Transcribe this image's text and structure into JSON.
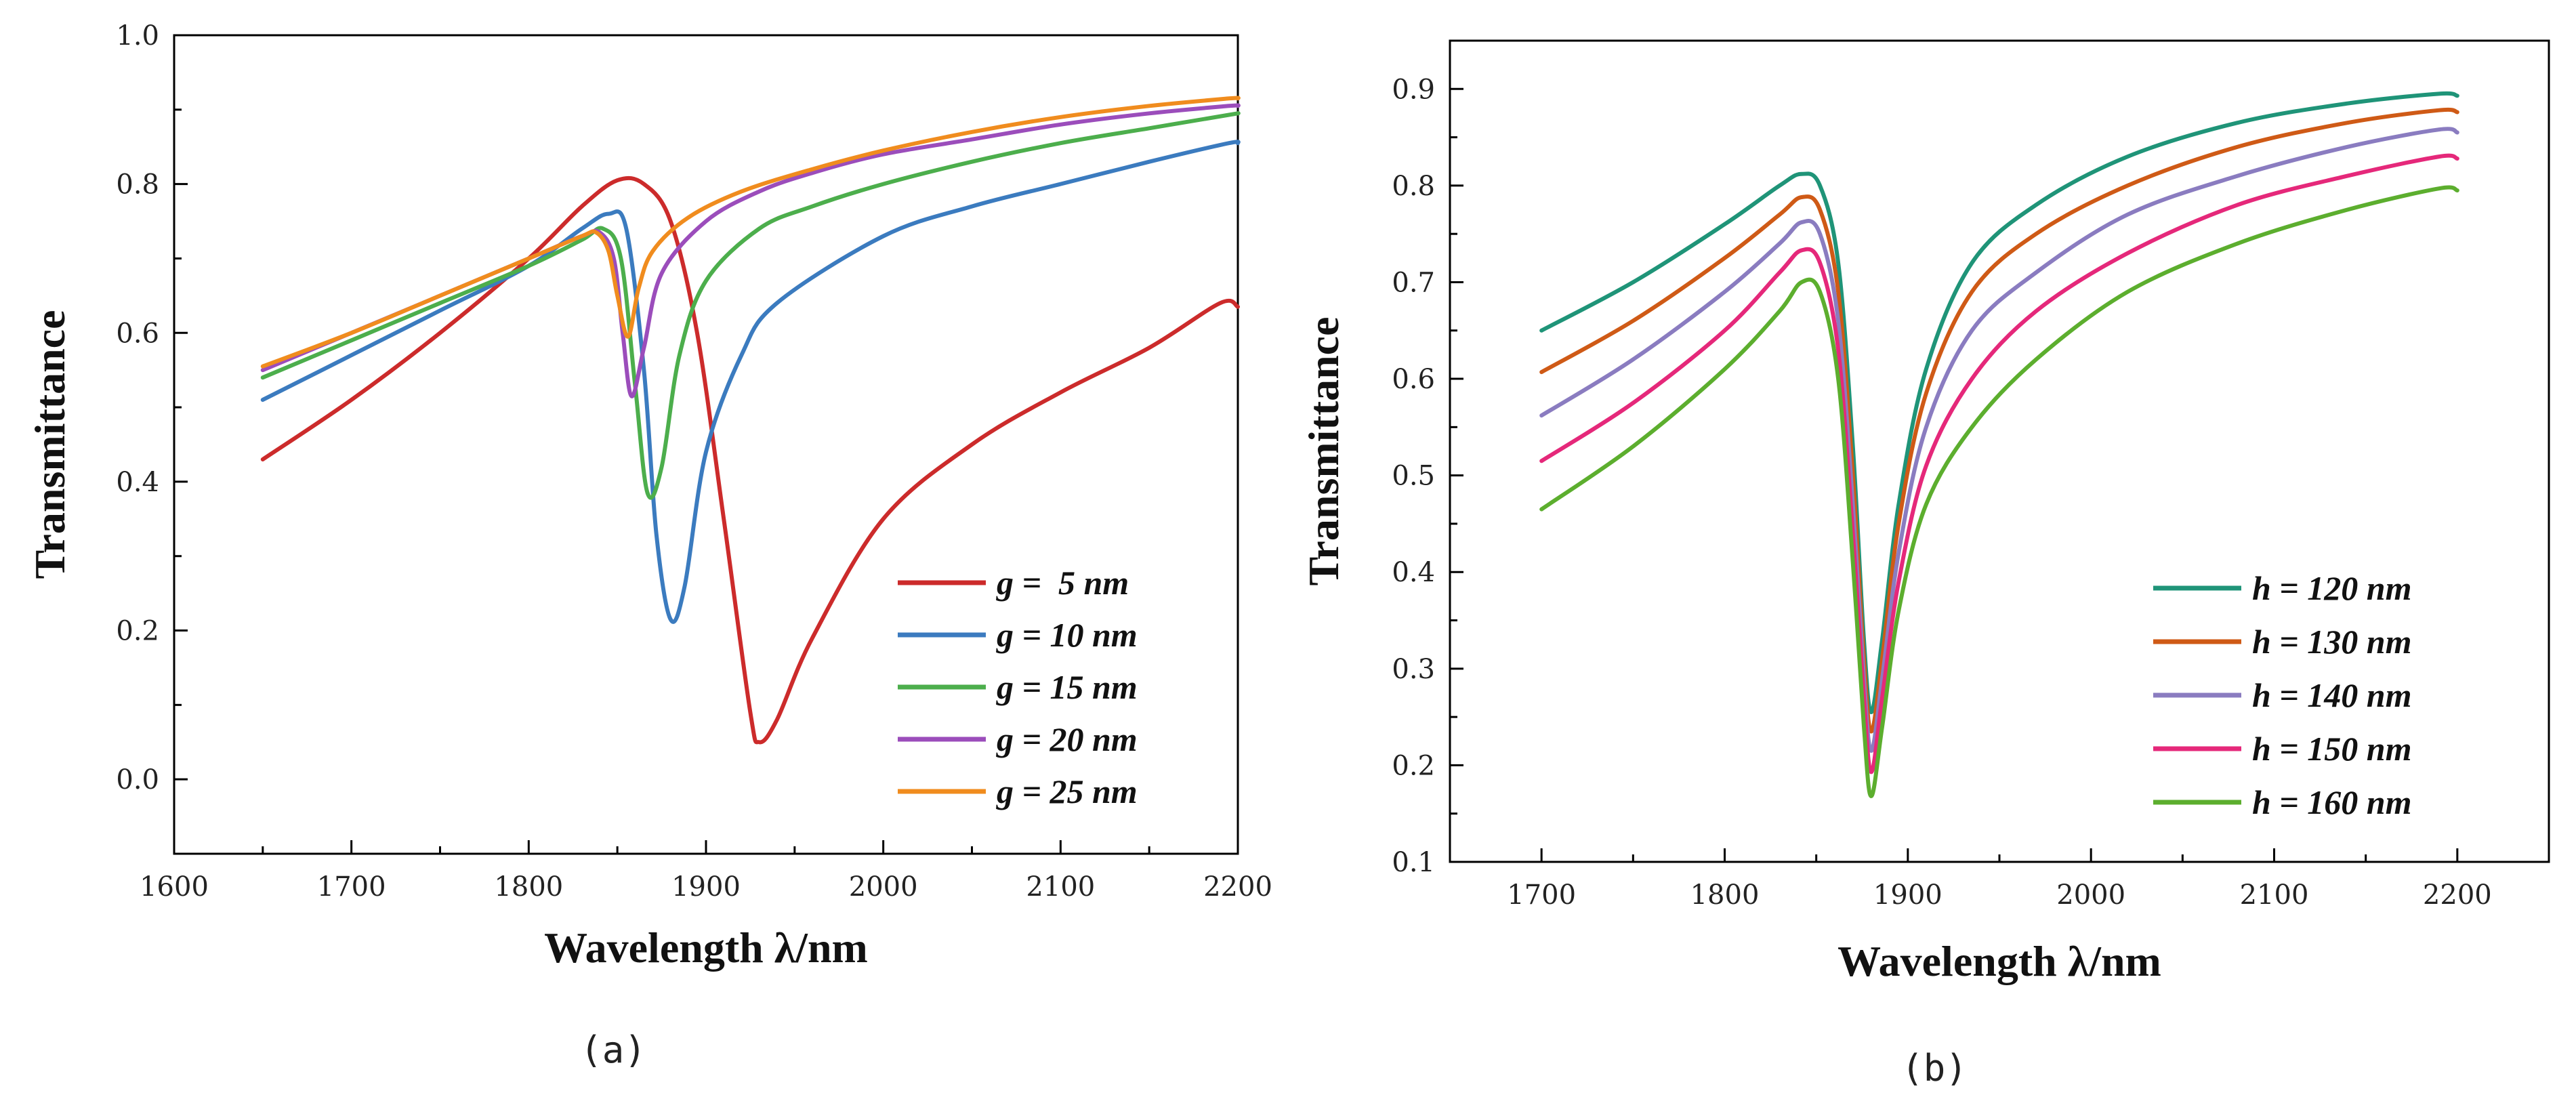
{
  "chart_data": [
    {
      "id": "a",
      "type": "line",
      "panel_label": "(a)",
      "xlabel": "Wavelength λ/nm",
      "ylabel": "Transmittance",
      "xlim": [
        1600,
        2200
      ],
      "ylim": [
        -0.1,
        1.0
      ],
      "xticks": [
        "1600",
        "1700",
        "1800",
        "1900",
        "2000",
        "2100",
        "2200"
      ],
      "xtick_values": [
        1600,
        1700,
        1800,
        1900,
        2000,
        2100,
        2200
      ],
      "yticks": [
        "0.0",
        "0.2",
        "0.4",
        "0.6",
        "0.8",
        "1.0"
      ],
      "ytick_values": [
        0.0,
        0.2,
        0.4,
        0.6,
        0.8,
        1.0
      ],
      "legend_position": "bottom-right",
      "series": [
        {
          "name": "g =  5 nm",
          "color": "#cc2b2b",
          "x": [
            1650,
            1700,
            1750,
            1800,
            1830,
            1850,
            1865,
            1880,
            1895,
            1910,
            1925,
            1930,
            1940,
            1960,
            2000,
            2050,
            2100,
            2150,
            2190,
            2200
          ],
          "y": [
            0.43,
            0.51,
            0.6,
            0.7,
            0.77,
            0.805,
            0.8,
            0.75,
            0.6,
            0.35,
            0.09,
            0.05,
            0.08,
            0.19,
            0.35,
            0.45,
            0.52,
            0.58,
            0.64,
            0.635
          ]
        },
        {
          "name": "g = 10 nm",
          "color": "#3b7bbf",
          "x": [
            1650,
            1700,
            1750,
            1800,
            1830,
            1845,
            1855,
            1865,
            1872,
            1880,
            1888,
            1900,
            1920,
            1940,
            2000,
            2050,
            2100,
            2150,
            2195,
            2200
          ],
          "y": [
            0.51,
            0.57,
            0.63,
            0.69,
            0.74,
            0.76,
            0.74,
            0.55,
            0.33,
            0.215,
            0.26,
            0.44,
            0.57,
            0.64,
            0.73,
            0.77,
            0.8,
            0.83,
            0.855,
            0.855
          ]
        },
        {
          "name": "g = 15 nm",
          "color": "#4cae4c",
          "x": [
            1650,
            1700,
            1750,
            1800,
            1830,
            1842,
            1852,
            1860,
            1867,
            1875,
            1885,
            1900,
            1930,
            1960,
            2000,
            2050,
            2100,
            2150,
            2195,
            2200
          ],
          "y": [
            0.54,
            0.59,
            0.64,
            0.69,
            0.725,
            0.74,
            0.7,
            0.53,
            0.385,
            0.42,
            0.57,
            0.67,
            0.74,
            0.77,
            0.8,
            0.83,
            0.855,
            0.875,
            0.893,
            0.895
          ]
        },
        {
          "name": "g = 20 nm",
          "color": "#9b4dbb",
          "x": [
            1650,
            1700,
            1750,
            1800,
            1830,
            1840,
            1848,
            1853,
            1858,
            1865,
            1875,
            1900,
            1930,
            1960,
            2000,
            2050,
            2100,
            2150,
            2195,
            2200
          ],
          "y": [
            0.55,
            0.6,
            0.65,
            0.7,
            0.73,
            0.735,
            0.7,
            0.6,
            0.515,
            0.58,
            0.68,
            0.75,
            0.79,
            0.815,
            0.84,
            0.86,
            0.88,
            0.895,
            0.905,
            0.905
          ]
        },
        {
          "name": "g = 25 nm",
          "color": "#f08c1e",
          "x": [
            1650,
            1700,
            1750,
            1800,
            1830,
            1838,
            1845,
            1850,
            1856,
            1862,
            1870,
            1890,
            1920,
            1960,
            2000,
            2050,
            2100,
            2150,
            2195,
            2200
          ],
          "y": [
            0.555,
            0.6,
            0.65,
            0.7,
            0.73,
            0.735,
            0.71,
            0.65,
            0.595,
            0.66,
            0.71,
            0.755,
            0.79,
            0.82,
            0.845,
            0.87,
            0.89,
            0.905,
            0.915,
            0.915
          ]
        }
      ]
    },
    {
      "id": "b",
      "type": "line",
      "panel_label": "(b)",
      "xlabel": "Wavelength λ/nm",
      "ylabel": "Transmittance",
      "xlim": [
        1650,
        2250
      ],
      "ylim": [
        0.1,
        0.95
      ],
      "xticks": [
        "1700",
        "1800",
        "1900",
        "2000",
        "2100",
        "2200"
      ],
      "xtick_values": [
        1700,
        1800,
        1900,
        2000,
        2100,
        2200
      ],
      "yticks": [
        "0.1",
        "0.2",
        "0.3",
        "0.4",
        "0.5",
        "0.6",
        "0.7",
        "0.8",
        "0.9"
      ],
      "ytick_values": [
        0.1,
        0.2,
        0.3,
        0.4,
        0.5,
        0.6,
        0.7,
        0.8,
        0.9
      ],
      "legend_position": "bottom-right",
      "series": [
        {
          "name": "h = 120 nm",
          "color": "#1f9478",
          "x": [
            1700,
            1750,
            1800,
            1830,
            1842,
            1852,
            1862,
            1870,
            1876,
            1880,
            1886,
            1895,
            1910,
            1935,
            1970,
            2020,
            2080,
            2140,
            2190,
            2200
          ],
          "y": [
            0.65,
            0.7,
            0.76,
            0.8,
            0.812,
            0.8,
            0.72,
            0.53,
            0.33,
            0.255,
            0.33,
            0.47,
            0.61,
            0.72,
            0.78,
            0.83,
            0.865,
            0.885,
            0.895,
            0.893
          ]
        },
        {
          "name": "h = 130 nm",
          "color": "#cf5a16",
          "x": [
            1700,
            1750,
            1800,
            1830,
            1842,
            1852,
            1862,
            1870,
            1876,
            1880,
            1886,
            1895,
            1910,
            1935,
            1970,
            2020,
            2080,
            2140,
            2190,
            2200
          ],
          "y": [
            0.607,
            0.66,
            0.725,
            0.77,
            0.788,
            0.775,
            0.69,
            0.5,
            0.31,
            0.235,
            0.31,
            0.45,
            0.585,
            0.69,
            0.75,
            0.8,
            0.84,
            0.865,
            0.878,
            0.876
          ]
        },
        {
          "name": "h = 140 nm",
          "color": "#8a7cc0",
          "x": [
            1700,
            1750,
            1800,
            1830,
            1842,
            1852,
            1862,
            1870,
            1876,
            1880,
            1886,
            1895,
            1910,
            1935,
            1970,
            2020,
            2080,
            2140,
            2190,
            2200
          ],
          "y": [
            0.562,
            0.62,
            0.69,
            0.74,
            0.762,
            0.75,
            0.66,
            0.47,
            0.29,
            0.215,
            0.29,
            0.42,
            0.55,
            0.65,
            0.71,
            0.77,
            0.81,
            0.84,
            0.858,
            0.855
          ]
        },
        {
          "name": "h = 150 nm",
          "color": "#e5287a",
          "x": [
            1700,
            1750,
            1800,
            1830,
            1842,
            1852,
            1862,
            1870,
            1876,
            1880,
            1886,
            1895,
            1910,
            1935,
            1970,
            2020,
            2080,
            2140,
            2190,
            2200
          ],
          "y": [
            0.515,
            0.575,
            0.65,
            0.71,
            0.733,
            0.72,
            0.63,
            0.44,
            0.27,
            0.193,
            0.27,
            0.39,
            0.51,
            0.6,
            0.67,
            0.73,
            0.78,
            0.81,
            0.83,
            0.828
          ]
        },
        {
          "name": "h = 160 nm",
          "color": "#5cae2e",
          "x": [
            1700,
            1750,
            1800,
            1830,
            1842,
            1852,
            1862,
            1870,
            1876,
            1880,
            1886,
            1895,
            1910,
            1935,
            1970,
            2020,
            2080,
            2140,
            2190,
            2200
          ],
          "y": [
            0.465,
            0.53,
            0.61,
            0.67,
            0.7,
            0.69,
            0.6,
            0.41,
            0.24,
            0.168,
            0.24,
            0.36,
            0.47,
            0.55,
            0.62,
            0.69,
            0.74,
            0.775,
            0.797,
            0.795
          ]
        }
      ]
    }
  ]
}
